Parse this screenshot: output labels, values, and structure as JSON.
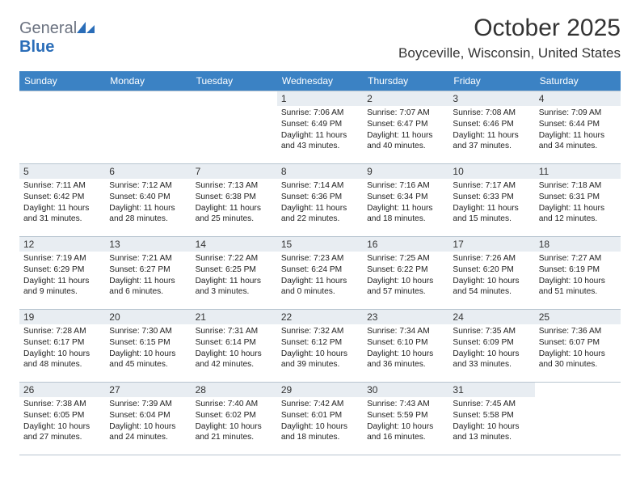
{
  "logo": {
    "text1": "General",
    "text2": "Blue"
  },
  "title": "October 2025",
  "location": "Boyceville, Wisconsin, United States",
  "colors": {
    "header_bg": "#3b82c4",
    "daynum_bg": "#e8edf2",
    "border": "#b8c5d0",
    "logo_gray": "#6b7280",
    "logo_blue": "#2a6db8"
  },
  "dayHeaders": [
    "Sunday",
    "Monday",
    "Tuesday",
    "Wednesday",
    "Thursday",
    "Friday",
    "Saturday"
  ],
  "weeks": [
    [
      null,
      null,
      null,
      {
        "n": "1",
        "sr": "Sunrise: 7:06 AM",
        "ss": "Sunset: 6:49 PM",
        "dl": "Daylight: 11 hours and 43 minutes."
      },
      {
        "n": "2",
        "sr": "Sunrise: 7:07 AM",
        "ss": "Sunset: 6:47 PM",
        "dl": "Daylight: 11 hours and 40 minutes."
      },
      {
        "n": "3",
        "sr": "Sunrise: 7:08 AM",
        "ss": "Sunset: 6:46 PM",
        "dl": "Daylight: 11 hours and 37 minutes."
      },
      {
        "n": "4",
        "sr": "Sunrise: 7:09 AM",
        "ss": "Sunset: 6:44 PM",
        "dl": "Daylight: 11 hours and 34 minutes."
      }
    ],
    [
      {
        "n": "5",
        "sr": "Sunrise: 7:11 AM",
        "ss": "Sunset: 6:42 PM",
        "dl": "Daylight: 11 hours and 31 minutes."
      },
      {
        "n": "6",
        "sr": "Sunrise: 7:12 AM",
        "ss": "Sunset: 6:40 PM",
        "dl": "Daylight: 11 hours and 28 minutes."
      },
      {
        "n": "7",
        "sr": "Sunrise: 7:13 AM",
        "ss": "Sunset: 6:38 PM",
        "dl": "Daylight: 11 hours and 25 minutes."
      },
      {
        "n": "8",
        "sr": "Sunrise: 7:14 AM",
        "ss": "Sunset: 6:36 PM",
        "dl": "Daylight: 11 hours and 22 minutes."
      },
      {
        "n": "9",
        "sr": "Sunrise: 7:16 AM",
        "ss": "Sunset: 6:34 PM",
        "dl": "Daylight: 11 hours and 18 minutes."
      },
      {
        "n": "10",
        "sr": "Sunrise: 7:17 AM",
        "ss": "Sunset: 6:33 PM",
        "dl": "Daylight: 11 hours and 15 minutes."
      },
      {
        "n": "11",
        "sr": "Sunrise: 7:18 AM",
        "ss": "Sunset: 6:31 PM",
        "dl": "Daylight: 11 hours and 12 minutes."
      }
    ],
    [
      {
        "n": "12",
        "sr": "Sunrise: 7:19 AM",
        "ss": "Sunset: 6:29 PM",
        "dl": "Daylight: 11 hours and 9 minutes."
      },
      {
        "n": "13",
        "sr": "Sunrise: 7:21 AM",
        "ss": "Sunset: 6:27 PM",
        "dl": "Daylight: 11 hours and 6 minutes."
      },
      {
        "n": "14",
        "sr": "Sunrise: 7:22 AM",
        "ss": "Sunset: 6:25 PM",
        "dl": "Daylight: 11 hours and 3 minutes."
      },
      {
        "n": "15",
        "sr": "Sunrise: 7:23 AM",
        "ss": "Sunset: 6:24 PM",
        "dl": "Daylight: 11 hours and 0 minutes."
      },
      {
        "n": "16",
        "sr": "Sunrise: 7:25 AM",
        "ss": "Sunset: 6:22 PM",
        "dl": "Daylight: 10 hours and 57 minutes."
      },
      {
        "n": "17",
        "sr": "Sunrise: 7:26 AM",
        "ss": "Sunset: 6:20 PM",
        "dl": "Daylight: 10 hours and 54 minutes."
      },
      {
        "n": "18",
        "sr": "Sunrise: 7:27 AM",
        "ss": "Sunset: 6:19 PM",
        "dl": "Daylight: 10 hours and 51 minutes."
      }
    ],
    [
      {
        "n": "19",
        "sr": "Sunrise: 7:28 AM",
        "ss": "Sunset: 6:17 PM",
        "dl": "Daylight: 10 hours and 48 minutes."
      },
      {
        "n": "20",
        "sr": "Sunrise: 7:30 AM",
        "ss": "Sunset: 6:15 PM",
        "dl": "Daylight: 10 hours and 45 minutes."
      },
      {
        "n": "21",
        "sr": "Sunrise: 7:31 AM",
        "ss": "Sunset: 6:14 PM",
        "dl": "Daylight: 10 hours and 42 minutes."
      },
      {
        "n": "22",
        "sr": "Sunrise: 7:32 AM",
        "ss": "Sunset: 6:12 PM",
        "dl": "Daylight: 10 hours and 39 minutes."
      },
      {
        "n": "23",
        "sr": "Sunrise: 7:34 AM",
        "ss": "Sunset: 6:10 PM",
        "dl": "Daylight: 10 hours and 36 minutes."
      },
      {
        "n": "24",
        "sr": "Sunrise: 7:35 AM",
        "ss": "Sunset: 6:09 PM",
        "dl": "Daylight: 10 hours and 33 minutes."
      },
      {
        "n": "25",
        "sr": "Sunrise: 7:36 AM",
        "ss": "Sunset: 6:07 PM",
        "dl": "Daylight: 10 hours and 30 minutes."
      }
    ],
    [
      {
        "n": "26",
        "sr": "Sunrise: 7:38 AM",
        "ss": "Sunset: 6:05 PM",
        "dl": "Daylight: 10 hours and 27 minutes."
      },
      {
        "n": "27",
        "sr": "Sunrise: 7:39 AM",
        "ss": "Sunset: 6:04 PM",
        "dl": "Daylight: 10 hours and 24 minutes."
      },
      {
        "n": "28",
        "sr": "Sunrise: 7:40 AM",
        "ss": "Sunset: 6:02 PM",
        "dl": "Daylight: 10 hours and 21 minutes."
      },
      {
        "n": "29",
        "sr": "Sunrise: 7:42 AM",
        "ss": "Sunset: 6:01 PM",
        "dl": "Daylight: 10 hours and 18 minutes."
      },
      {
        "n": "30",
        "sr": "Sunrise: 7:43 AM",
        "ss": "Sunset: 5:59 PM",
        "dl": "Daylight: 10 hours and 16 minutes."
      },
      {
        "n": "31",
        "sr": "Sunrise: 7:45 AM",
        "ss": "Sunset: 5:58 PM",
        "dl": "Daylight: 10 hours and 13 minutes."
      },
      null
    ]
  ]
}
